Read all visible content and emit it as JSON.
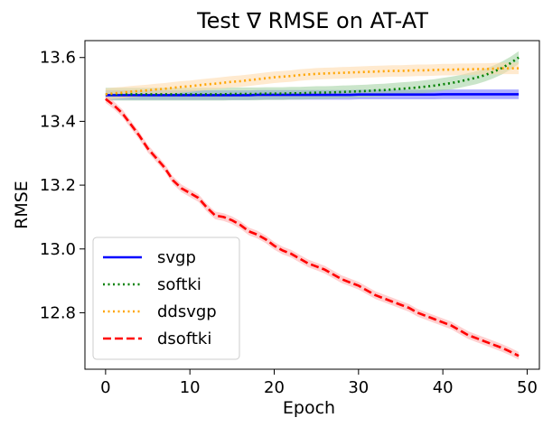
{
  "chart_data": {
    "type": "line",
    "title": "Test ∇ RMSE on AT-AT",
    "xlabel": "Epoch",
    "ylabel": "RMSE",
    "xlim": [
      -2.45,
      51.45
    ],
    "ylim": [
      12.623,
      13.653
    ],
    "xticks": [
      0,
      10,
      20,
      30,
      40,
      50
    ],
    "yticks": [
      12.8,
      13.0,
      13.2,
      13.4,
      13.6
    ],
    "xtick_labels": [
      "0",
      "10",
      "20",
      "30",
      "40",
      "50"
    ],
    "ytick_labels": [
      "12.8",
      "13.0",
      "13.2",
      "13.4",
      "13.6"
    ],
    "grid": false,
    "legend_position": "lower-left",
    "x": [
      0,
      1,
      2,
      3,
      4,
      5,
      6,
      7,
      8,
      9,
      10,
      11,
      12,
      13,
      14,
      15,
      16,
      17,
      18,
      19,
      20,
      21,
      22,
      23,
      24,
      25,
      26,
      27,
      28,
      29,
      30,
      31,
      32,
      33,
      34,
      35,
      36,
      37,
      38,
      39,
      40,
      41,
      42,
      43,
      44,
      45,
      46,
      47,
      48,
      49
    ],
    "series": [
      {
        "name": "svgp",
        "color": "#0000ff",
        "style": "solid",
        "band_color": "#6b6bff",
        "band_width": 0.015,
        "values": [
          13.482,
          13.482,
          13.482,
          13.482,
          13.482,
          13.482,
          13.482,
          13.482,
          13.482,
          13.482,
          13.482,
          13.482,
          13.482,
          13.482,
          13.482,
          13.482,
          13.482,
          13.482,
          13.483,
          13.483,
          13.483,
          13.483,
          13.483,
          13.483,
          13.483,
          13.483,
          13.483,
          13.483,
          13.483,
          13.483,
          13.484,
          13.484,
          13.484,
          13.484,
          13.484,
          13.484,
          13.484,
          13.484,
          13.484,
          13.484,
          13.485,
          13.485,
          13.485,
          13.485,
          13.485,
          13.485,
          13.485,
          13.485,
          13.485,
          13.485
        ]
      },
      {
        "name": "softki",
        "color": "#008000",
        "style": "dotted",
        "band_color": "#9fd09f",
        "band_width": 0.02,
        "values": [
          13.485,
          13.485,
          13.485,
          13.485,
          13.485,
          13.485,
          13.485,
          13.485,
          13.485,
          13.485,
          13.485,
          13.485,
          13.485,
          13.485,
          13.485,
          13.486,
          13.486,
          13.486,
          13.486,
          13.487,
          13.487,
          13.487,
          13.488,
          13.488,
          13.489,
          13.49,
          13.49,
          13.491,
          13.492,
          13.493,
          13.494,
          13.495,
          13.497,
          13.498,
          13.5,
          13.502,
          13.504,
          13.506,
          13.509,
          13.512,
          13.516,
          13.52,
          13.525,
          13.531,
          13.537,
          13.545,
          13.555,
          13.567,
          13.582,
          13.6
        ]
      },
      {
        "name": "ddsvgp",
        "color": "#ffa500",
        "style": "dotted",
        "band_color": "#ffd9a8",
        "band_width": 0.018,
        "values": [
          13.485,
          13.488,
          13.49,
          13.493,
          13.495,
          13.497,
          13.5,
          13.502,
          13.505,
          13.508,
          13.51,
          13.513,
          13.516,
          13.518,
          13.521,
          13.524,
          13.526,
          13.529,
          13.532,
          13.535,
          13.538,
          13.54,
          13.542,
          13.545,
          13.547,
          13.549,
          13.55,
          13.551,
          13.552,
          13.553,
          13.554,
          13.555,
          13.556,
          13.557,
          13.558,
          13.558,
          13.559,
          13.56,
          13.56,
          13.561,
          13.562,
          13.562,
          13.563,
          13.563,
          13.564,
          13.564,
          13.565,
          13.566,
          13.566,
          13.566
        ]
      },
      {
        "name": "dsoftki",
        "color": "#ff0000",
        "style": "dashed",
        "band_color": "#ffaaaa",
        "band_width": 0.012,
        "values": [
          13.47,
          13.45,
          13.425,
          13.39,
          13.355,
          13.315,
          13.285,
          13.255,
          13.215,
          13.19,
          13.175,
          13.16,
          13.13,
          13.105,
          13.1,
          13.09,
          13.075,
          13.055,
          13.045,
          13.03,
          13.01,
          12.995,
          12.985,
          12.97,
          12.955,
          12.945,
          12.935,
          12.92,
          12.905,
          12.895,
          12.885,
          12.87,
          12.855,
          12.845,
          12.835,
          12.825,
          12.815,
          12.8,
          12.79,
          12.78,
          12.77,
          12.76,
          12.745,
          12.73,
          12.72,
          12.71,
          12.7,
          12.69,
          12.678,
          12.665
        ]
      }
    ]
  }
}
